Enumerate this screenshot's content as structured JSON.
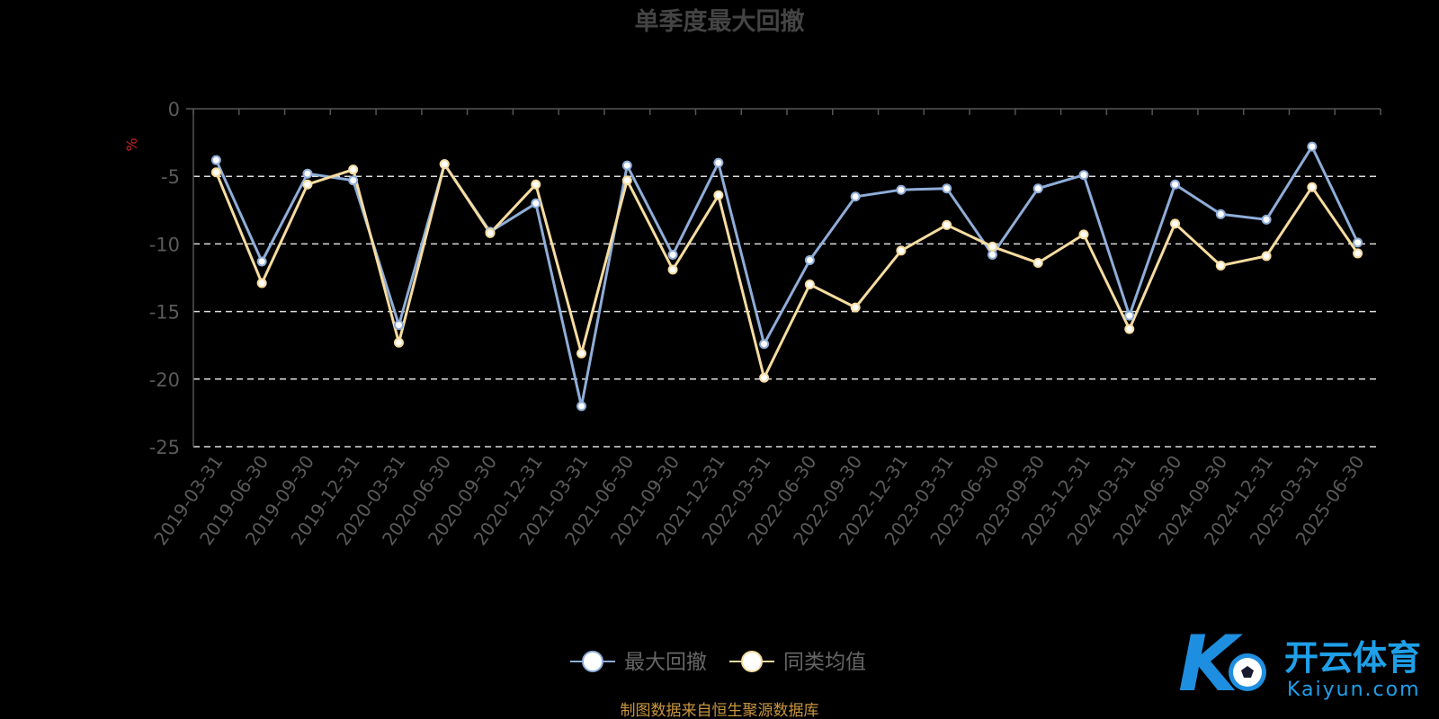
{
  "chart_data": {
    "type": "line",
    "title": "单季度最大回撤",
    "ylabel": "%",
    "ylim": [
      -25,
      0
    ],
    "yticks": [
      0,
      -5,
      -10,
      -15,
      -20,
      -25
    ],
    "grid": true,
    "legend_position": "bottom-center",
    "categories": [
      "2019-03-31",
      "2019-06-30",
      "2019-09-30",
      "2019-12-31",
      "2020-03-31",
      "2020-06-30",
      "2020-09-30",
      "2020-12-31",
      "2021-03-31",
      "2021-06-30",
      "2021-09-30",
      "2021-12-31",
      "2022-03-31",
      "2022-06-30",
      "2022-09-30",
      "2022-12-31",
      "2023-03-31",
      "2023-06-30",
      "2023-09-30",
      "2023-12-31",
      "2024-03-31",
      "2024-06-30",
      "2024-09-30",
      "2024-12-31",
      "2025-03-31",
      "2025-06-30"
    ],
    "series": [
      {
        "name": "最大回撤",
        "color": "#8fadd8",
        "values": [
          -3.8,
          -11.3,
          -4.8,
          -5.3,
          -16.0,
          -4.1,
          -9.1,
          -7.0,
          -22.0,
          -4.2,
          -10.8,
          -4.0,
          -17.4,
          -11.2,
          -6.5,
          -6.0,
          -5.9,
          -10.8,
          -5.9,
          -4.9,
          -15.3,
          -5.6,
          -7.8,
          -8.2,
          -2.8,
          -9.9
        ]
      },
      {
        "name": "同类均值",
        "color": "#f6dca0",
        "values": [
          -4.7,
          -12.9,
          -5.6,
          -4.5,
          -17.3,
          -4.1,
          -9.2,
          -5.6,
          -18.1,
          -5.3,
          -11.9,
          -6.4,
          -19.9,
          -13.0,
          -14.7,
          -10.5,
          -8.6,
          -10.2,
          -11.4,
          -9.3,
          -16.3,
          -8.5,
          -11.6,
          -10.9,
          -5.8,
          -10.7
        ]
      }
    ]
  },
  "footer": {
    "source": "制图数据来自恒生聚源数据库"
  },
  "watermark": {
    "brand_cn": "开云体育",
    "brand_en": "Kaiyun.com"
  },
  "colors": {
    "axis": "#555555",
    "tick_text": "#5a5a5a",
    "grid": "#dddddd",
    "ylabel": "#cc2222"
  }
}
